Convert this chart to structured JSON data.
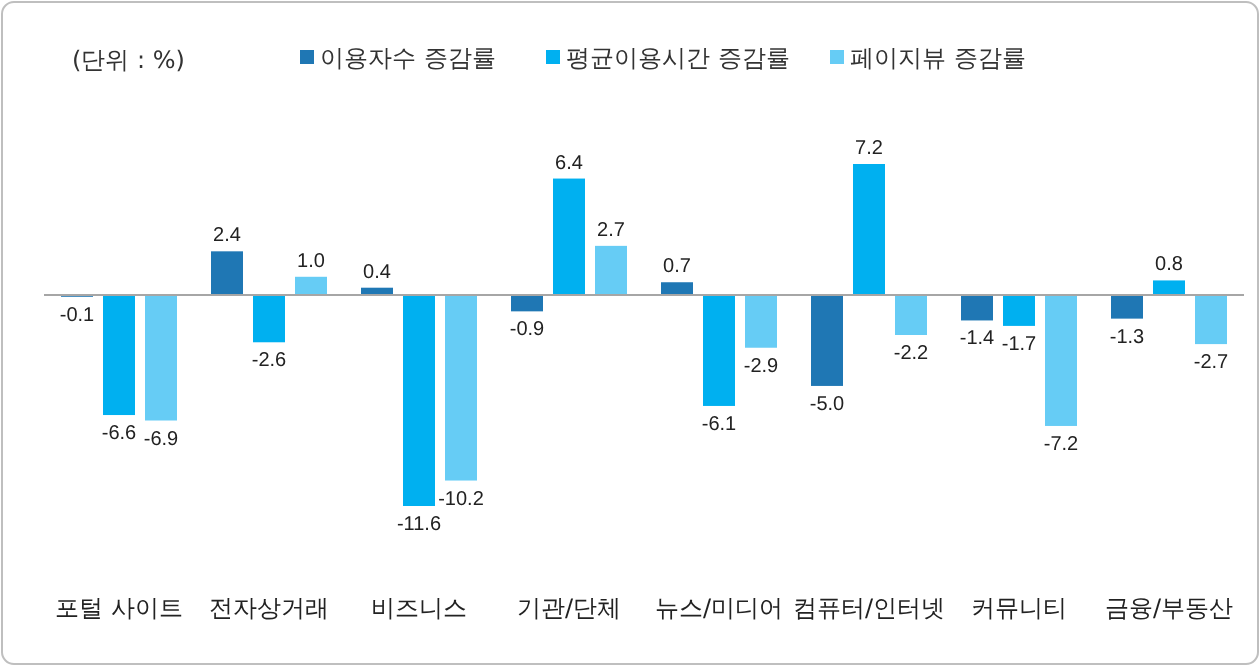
{
  "chart_data": {
    "type": "bar",
    "categories": [
      "포털 사이트",
      "전자상거래",
      "비즈니스",
      "기관/단체",
      "뉴스/미디어",
      "컴퓨터/인터넷",
      "커뮤니티",
      "금융/부동산"
    ],
    "series": [
      {
        "name": "이용자수 증감률",
        "color": "#1f77b4",
        "values": [
          -0.1,
          2.4,
          0.4,
          -0.9,
          0.7,
          -5.0,
          -1.4,
          -1.3
        ],
        "value_labels": [
          "-0.1",
          "2.4",
          "0.4",
          "-0.9",
          "0.7",
          "-5.0",
          "-1.4",
          "-1.3"
        ]
      },
      {
        "name": "평균이용시간 증감률",
        "color": "#00b0f0",
        "values": [
          -6.6,
          -2.6,
          -11.6,
          6.4,
          -6.1,
          7.2,
          -1.7,
          0.8
        ],
        "value_labels": [
          "-6.6",
          "-2.6",
          "-11.6",
          "6.4",
          "-6.1",
          "7.2",
          "-1.7",
          "0.8"
        ]
      },
      {
        "name": "페이지뷰 증감률",
        "color": "#66ccf5",
        "values": [
          -6.9,
          1.0,
          -10.2,
          2.7,
          -2.9,
          -2.2,
          -7.2,
          -2.7
        ],
        "value_labels": [
          "-6.9",
          "1.0",
          "-10.2",
          "2.7",
          "-2.9",
          "-2.2",
          "-7.2",
          "-2.7"
        ]
      }
    ],
    "annotations": [
      "(단위 : %)"
    ],
    "legend": "top"
  }
}
